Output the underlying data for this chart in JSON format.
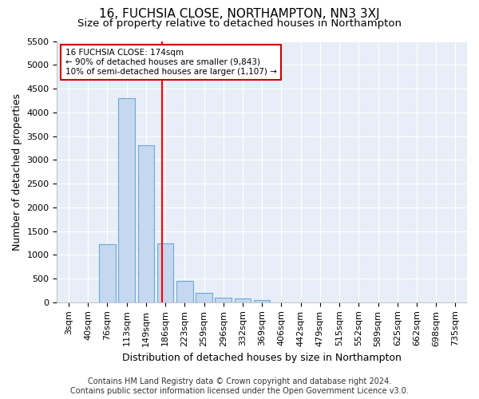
{
  "title": "16, FUCHSIA CLOSE, NORTHAMPTON, NN3 3XJ",
  "subtitle": "Size of property relative to detached houses in Northampton",
  "xlabel": "Distribution of detached houses by size in Northampton",
  "ylabel": "Number of detached properties",
  "footer_line1": "Contains HM Land Registry data © Crown copyright and database right 2024.",
  "footer_line2": "Contains public sector information licensed under the Open Government Licence v3.0.",
  "categories": [
    "3sqm",
    "40sqm",
    "76sqm",
    "113sqm",
    "149sqm",
    "186sqm",
    "223sqm",
    "259sqm",
    "296sqm",
    "332sqm",
    "369sqm",
    "406sqm",
    "442sqm",
    "479sqm",
    "515sqm",
    "552sqm",
    "589sqm",
    "625sqm",
    "662sqm",
    "698sqm",
    "735sqm"
  ],
  "values": [
    0,
    0,
    1220,
    4300,
    3300,
    1240,
    450,
    205,
    100,
    75,
    50,
    0,
    0,
    0,
    0,
    0,
    0,
    0,
    0,
    0,
    0
  ],
  "bar_color": "#c5d8f0",
  "bar_edge_color": "#6aaad4",
  "red_line_x": 4.85,
  "annotation_line1": "16 FUCHSIA CLOSE: 174sqm",
  "annotation_line2": "← 90% of detached houses are smaller (9,843)",
  "annotation_line3": "10% of semi-detached houses are larger (1,107) →",
  "annotation_box_color": "#ffffff",
  "annotation_box_edge_color": "#cc0000",
  "ylim": [
    0,
    5500
  ],
  "yticks": [
    0,
    500,
    1000,
    1500,
    2000,
    2500,
    3000,
    3500,
    4000,
    4500,
    5000,
    5500
  ],
  "plot_bg_color": "#e8eef7",
  "title_fontsize": 11,
  "subtitle_fontsize": 9.5,
  "axis_label_fontsize": 9,
  "tick_fontsize": 8,
  "footer_fontsize": 7
}
